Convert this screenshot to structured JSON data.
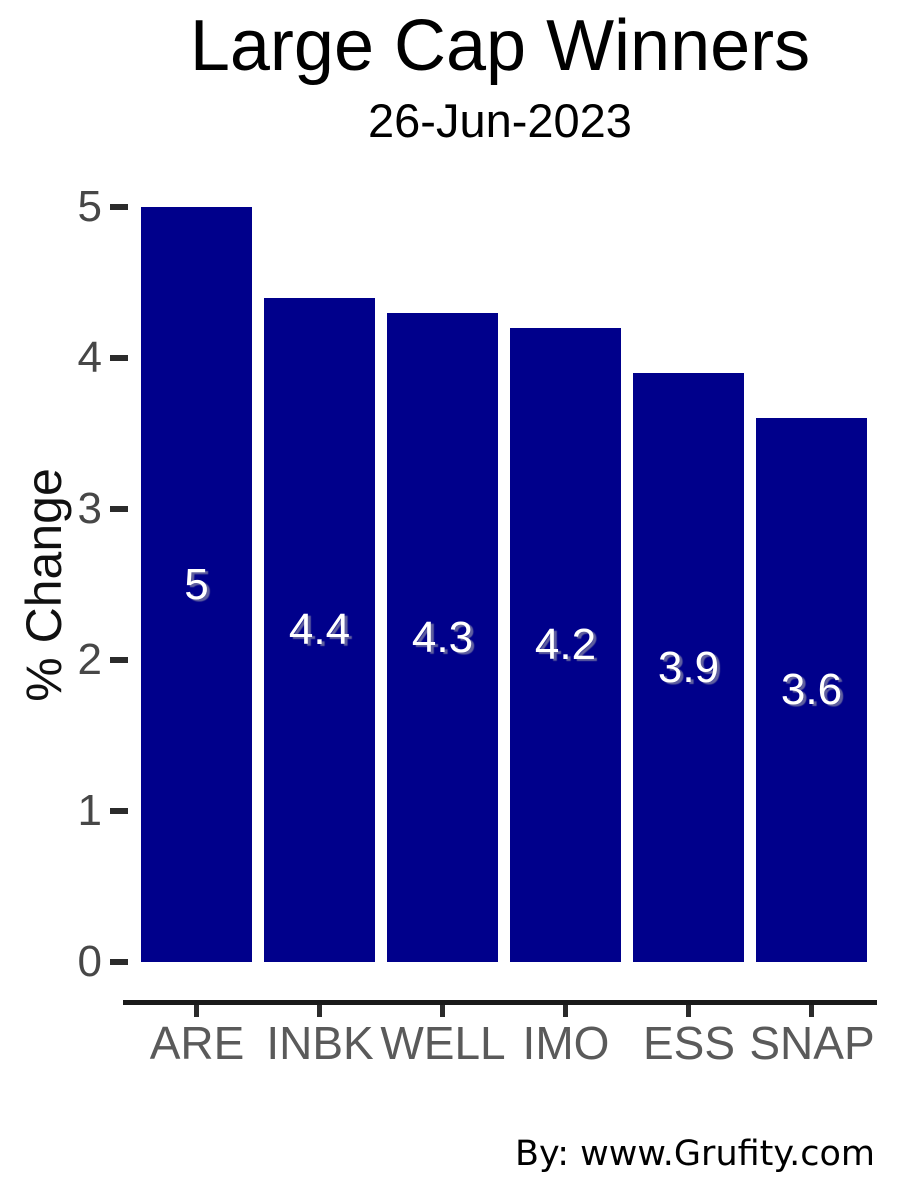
{
  "chart_data": {
    "type": "bar",
    "title": "Large Cap Winners",
    "subtitle": "26-Jun-2023",
    "ylabel": "% Change",
    "xlabel": "",
    "categories": [
      "ARE",
      "INBK",
      "WELL",
      "IMO",
      "ESS",
      "SNAP"
    ],
    "values": [
      5,
      4.4,
      4.3,
      4.2,
      3.9,
      3.6
    ],
    "value_labels": [
      "5",
      "4.4",
      "4.3",
      "4.2",
      "3.9",
      "3.6"
    ],
    "yticks": [
      0,
      1,
      2,
      3,
      4,
      5
    ],
    "ylim": [
      0,
      5
    ],
    "grid": false,
    "legend": false,
    "colors": {
      "bar": "#00008B",
      "value_label": "#ffffff",
      "axis_line": "#1a1a1a",
      "tick_mark": "#2b2b2b",
      "y_tick_label": "#474747",
      "x_tick_label": "#5a5a5a",
      "title": "#000000"
    }
  },
  "footer": {
    "text": "By: www.Grufity.com"
  }
}
